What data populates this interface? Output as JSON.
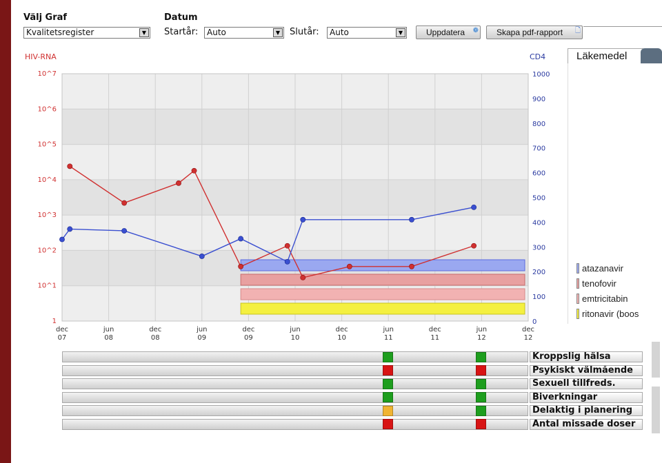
{
  "header": {
    "graph_label": "Välj Graf",
    "graph_value": "Kvalitetsregister",
    "date_label": "Datum",
    "start_label": "Startår:",
    "start_value": "Auto",
    "end_label": "Slutår:",
    "end_value": "Auto",
    "update_button": "Uppdatera",
    "pdf_button": "Skapa pdf-rapport"
  },
  "tabs": {
    "medications": "Läkemedel"
  },
  "colors": {
    "rna": "#d03030",
    "cd4": "#3a4fd0",
    "atazanavir": "#9aa8f0",
    "tenofovir": "#e8a0a0",
    "emtricitabin": "#f2b2b2",
    "ritonavir": "#f4f040",
    "quality_green": "#1e9e1e",
    "quality_red": "#d81414",
    "quality_yellow": "#f0b432"
  },
  "chart_data": {
    "type": "line",
    "title": "",
    "left_axis_label": "HIV-RNA",
    "right_axis_label": "CD4",
    "left_scale": "log10",
    "left_ticks": [
      "10^7",
      "10^6",
      "10^5",
      "10^4",
      "10^3",
      "10^2",
      "10^1",
      "1"
    ],
    "right_ticks": [
      "1000",
      "900",
      "800",
      "700",
      "600",
      "500",
      "400",
      "300",
      "200",
      "100",
      "0"
    ],
    "ylim_left": [
      1,
      10000000
    ],
    "ylim_right": [
      0,
      1000
    ],
    "x_ticks": [
      {
        "m": "dec",
        "y": "07"
      },
      {
        "m": "jun",
        "y": "08"
      },
      {
        "m": "dec",
        "y": "08"
      },
      {
        "m": "jun",
        "y": "09"
      },
      {
        "m": "dec",
        "y": "09"
      },
      {
        "m": "jun",
        "y": "10"
      },
      {
        "m": "dec",
        "y": "10"
      },
      {
        "m": "jun",
        "y": "11"
      },
      {
        "m": "dec",
        "y": "11"
      },
      {
        "m": "jun",
        "y": "12"
      },
      {
        "m": "dec",
        "y": "12"
      }
    ],
    "xlim": [
      "2007-12",
      "2012-12"
    ],
    "grid": true,
    "series": [
      {
        "name": "HIV-RNA",
        "axis": "left",
        "points": [
          {
            "x": "2008-01",
            "y": 24000
          },
          {
            "x": "2008-08",
            "y": 2200
          },
          {
            "x": "2009-03",
            "y": 8000
          },
          {
            "x": "2009-05",
            "y": 18000
          },
          {
            "x": "2009-11",
            "y": 35
          },
          {
            "x": "2010-05",
            "y": 135
          },
          {
            "x": "2010-07",
            "y": 17
          },
          {
            "x": "2011-01",
            "y": 35
          },
          {
            "x": "2011-09",
            "y": 35
          },
          {
            "x": "2012-05",
            "y": 135
          }
        ]
      },
      {
        "name": "CD4",
        "axis": "right",
        "points": [
          {
            "x": "2007-12",
            "y": 330
          },
          {
            "x": "2008-01",
            "y": 372
          },
          {
            "x": "2008-08",
            "y": 365
          },
          {
            "x": "2009-06",
            "y": 262
          },
          {
            "x": "2009-11",
            "y": 333
          },
          {
            "x": "2010-05",
            "y": 240
          },
          {
            "x": "2010-07",
            "y": 410
          },
          {
            "x": "2011-09",
            "y": 410
          },
          {
            "x": "2012-05",
            "y": 460
          }
        ]
      }
    ],
    "medications": [
      {
        "name": "atazanavir",
        "start": "2009-11",
        "end": "2012-12"
      },
      {
        "name": "tenofovir",
        "start": "2009-11",
        "end": "2012-12"
      },
      {
        "name": "emtricitabin",
        "start": "2009-11",
        "end": "2012-12"
      },
      {
        "name": "ritonavir (boos",
        "start": "2009-11",
        "end": "2012-12"
      }
    ]
  },
  "quality": {
    "dates": [
      "2011-06",
      "2012-06"
    ],
    "rows": [
      {
        "label": "Kroppslig hälsa",
        "values": [
          "green",
          "green"
        ]
      },
      {
        "label": "Psykiskt välmående",
        "values": [
          "red",
          "red"
        ]
      },
      {
        "label": "Sexuell tillfreds.",
        "values": [
          "green",
          "green"
        ]
      },
      {
        "label": "Biverkningar",
        "values": [
          "green",
          "green"
        ]
      },
      {
        "label": "Delaktig i planering",
        "values": [
          "yellow",
          "green"
        ]
      },
      {
        "label": "Antal missade doser",
        "values": [
          "red",
          "red"
        ]
      }
    ]
  }
}
